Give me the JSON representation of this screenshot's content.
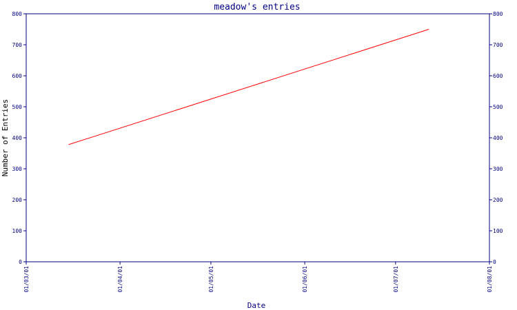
{
  "chart_data": {
    "type": "line",
    "title": "meadow's entries",
    "xlabel": "Date",
    "ylabel": "Number of Entries",
    "ylim": [
      0,
      800
    ],
    "yticks": [
      0,
      100,
      200,
      300,
      400,
      500,
      600,
      700,
      800
    ],
    "xlim": [
      "2001-03-01",
      "2001-08-01"
    ],
    "xticks": [
      {
        "date": "2001-03-01",
        "label": "01/03/01"
      },
      {
        "date": "2001-04-01",
        "label": "01/04/01"
      },
      {
        "date": "2001-05-01",
        "label": "01/05/01"
      },
      {
        "date": "2001-06-01",
        "label": "01/06/01"
      },
      {
        "date": "2001-07-01",
        "label": "01/07/01"
      },
      {
        "date": "2001-08-01",
        "label": "01/08/01"
      }
    ],
    "series": [
      {
        "color": "#ff0000",
        "points": [
          {
            "x": "2001-03-15",
            "y": 378
          },
          {
            "x": "2001-07-12",
            "y": 750
          }
        ]
      }
    ],
    "grid": false,
    "y_axis_both_sides": true,
    "axis_color": "#000080"
  }
}
